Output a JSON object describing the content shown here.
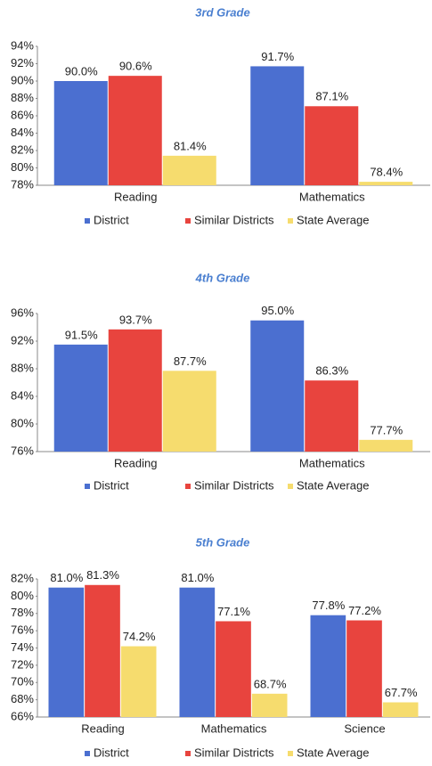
{
  "chart_data": [
    {
      "type": "bar",
      "title": "3rd Grade",
      "categories": [
        "Reading",
        "Mathematics"
      ],
      "series": [
        {
          "name": "District",
          "color": "#4b6fd0",
          "values": [
            90.0,
            91.7
          ],
          "value_labels": [
            "90.0%",
            "91.7%"
          ]
        },
        {
          "name": "Similar Districts",
          "color": "#e8443e",
          "values": [
            90.6,
            87.1
          ],
          "value_labels": [
            "90.6%",
            "87.1%"
          ]
        },
        {
          "name": "State Average",
          "color": "#f6dc6e",
          "values": [
            81.4,
            78.4
          ],
          "value_labels": [
            "81.4%",
            "78.4%"
          ]
        }
      ],
      "ylim": [
        78,
        94
      ],
      "yticks": [
        {
          "value": 78,
          "label": "78%"
        },
        {
          "value": 80,
          "label": "80%"
        },
        {
          "value": 82,
          "label": "82%"
        },
        {
          "value": 84,
          "label": "84%"
        },
        {
          "value": 86,
          "label": "86%"
        },
        {
          "value": 88,
          "label": "88%"
        },
        {
          "value": 90,
          "label": "90%"
        },
        {
          "value": 92,
          "label": "92%"
        },
        {
          "value": 94,
          "label": "94%"
        }
      ],
      "legend": "bottom"
    },
    {
      "type": "bar",
      "title": "4th Grade",
      "categories": [
        "Reading",
        "Mathematics"
      ],
      "series": [
        {
          "name": "District",
          "color": "#4b6fd0",
          "values": [
            91.5,
            95.0
          ],
          "value_labels": [
            "91.5%",
            "95.0%"
          ]
        },
        {
          "name": "Similar Districts",
          "color": "#e8443e",
          "values": [
            93.7,
            86.3
          ],
          "value_labels": [
            "93.7%",
            "86.3%"
          ]
        },
        {
          "name": "State Average",
          "color": "#f6dc6e",
          "values": [
            87.7,
            77.7
          ],
          "value_labels": [
            "87.7%",
            "77.7%"
          ]
        }
      ],
      "ylim": [
        76,
        96
      ],
      "yticks": [
        {
          "value": 76,
          "label": "76%"
        },
        {
          "value": 80,
          "label": "80%"
        },
        {
          "value": 84,
          "label": "84%"
        },
        {
          "value": 88,
          "label": "88%"
        },
        {
          "value": 92,
          "label": "92%"
        },
        {
          "value": 96,
          "label": "96%"
        }
      ],
      "legend": "bottom"
    },
    {
      "type": "bar",
      "title": "5th Grade",
      "categories": [
        "Reading",
        "Mathematics",
        "Science"
      ],
      "series": [
        {
          "name": "District",
          "color": "#4b6fd0",
          "values": [
            81.0,
            81.0,
            77.8
          ],
          "value_labels": [
            "81.0%",
            "81.0%",
            "77.8%"
          ]
        },
        {
          "name": "Similar Districts",
          "color": "#e8443e",
          "values": [
            81.3,
            77.1,
            77.2
          ],
          "value_labels": [
            "81.3%",
            "77.1%",
            "77.2%"
          ]
        },
        {
          "name": "State Average",
          "color": "#f6dc6e",
          "values": [
            74.2,
            68.7,
            67.7
          ],
          "value_labels": [
            "74.2%",
            "68.7%",
            "67.7%"
          ]
        }
      ],
      "ylim": [
        66,
        82
      ],
      "yticks": [
        {
          "value": 66,
          "label": "66%"
        },
        {
          "value": 68,
          "label": "68%"
        },
        {
          "value": 70,
          "label": "70%"
        },
        {
          "value": 72,
          "label": "72%"
        },
        {
          "value": 74,
          "label": "74%"
        },
        {
          "value": 76,
          "label": "76%"
        },
        {
          "value": 78,
          "label": "78%"
        },
        {
          "value": 80,
          "label": "80%"
        },
        {
          "value": 82,
          "label": "82%"
        }
      ],
      "legend": "bottom"
    }
  ]
}
